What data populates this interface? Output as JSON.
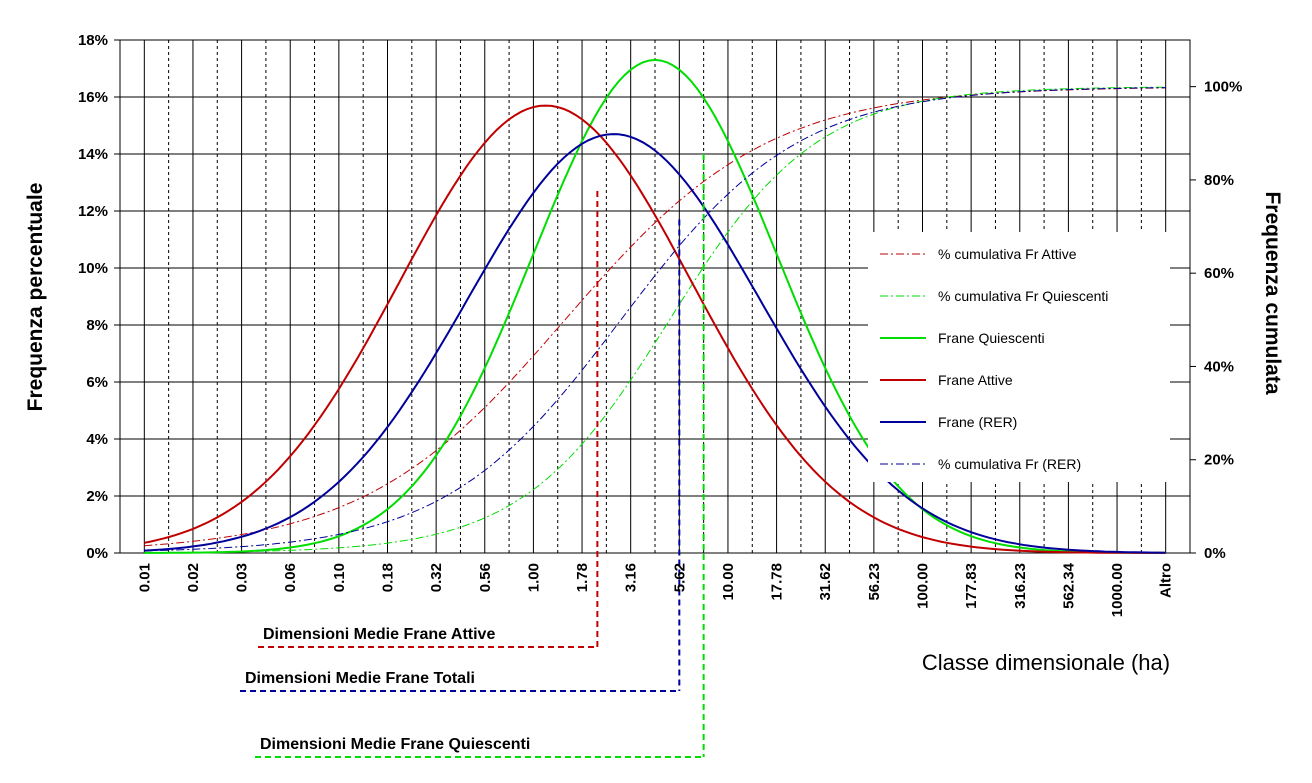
{
  "chart_data": {
    "type": "line",
    "xlabel": "Classe dimensionale (ha)",
    "ylabel": "Frequenza percentuale",
    "y2label": "Frequenza cumulata",
    "categories": [
      "0.01",
      "",
      "0.02",
      "",
      "0.03",
      "",
      "0.06",
      "",
      "0.10",
      "",
      "0.18",
      "",
      "0.32",
      "",
      "0.56",
      "",
      "1.00",
      "",
      "1.78",
      "",
      "3.16",
      "",
      "5.62",
      "",
      "10.00",
      "",
      "17.78",
      "",
      "31.62",
      "",
      "56.23",
      "",
      "100.00",
      "",
      "177.83",
      "",
      "316.23",
      "",
      "562.34",
      "",
      "1000.00",
      "",
      "Altro"
    ],
    "yticks": [
      "0%",
      "2%",
      "4%",
      "6%",
      "8%",
      "10%",
      "12%",
      "14%",
      "16%",
      "18%"
    ],
    "ylim": [
      0,
      18
    ],
    "y2ticks": [
      "0%",
      "20%",
      "40%",
      "60%",
      "80%",
      "100%"
    ],
    "y2lim": [
      0,
      110
    ],
    "grid": "on",
    "legend_position": "right",
    "series": [
      {
        "name": "% cumulativa Fr Attive",
        "axis": "right",
        "style": "dash-dot",
        "color": "#c00000",
        "mu": 17.3,
        "sigma": 7.1,
        "scale": 100
      },
      {
        "name": "% cumulativa Fr Quiescenti",
        "axis": "right",
        "style": "dash-dot",
        "color": "#00dd00",
        "mu": 21.6,
        "sigma": 5.15,
        "scale": 100
      },
      {
        "name": "Frane Quiescenti",
        "axis": "left",
        "style": "solid",
        "color": "#00dd00",
        "mu": 21.0,
        "sigma": 5.0,
        "peak": 17.3
      },
      {
        "name": "Frane Attive",
        "axis": "left",
        "style": "solid",
        "color": "#c00000",
        "mu": 16.5,
        "sigma": 6.0,
        "peak": 15.7
      },
      {
        "name": "Frane (RER)",
        "axis": "left",
        "style": "solid",
        "color": "#00009a",
        "mu": 19.3,
        "sigma": 6.0,
        "peak": 14.7
      },
      {
        "name": "% cumulativa Fr (RER)",
        "axis": "right",
        "style": "dash-dot",
        "color": "#00009a",
        "mu": 19.6,
        "sigma": 6.2,
        "scale": 100
      }
    ],
    "annotations": [
      {
        "label": "Dimensioni Medie Frane Attive",
        "color": "#c00000",
        "x_index": 19,
        "y_value": 12.7
      },
      {
        "label": "Dimensioni Medie Frane Totali",
        "color": "#00009a",
        "x_index": 22,
        "y_value": 11.7
      },
      {
        "label": "Dimensioni Medie Frane Quiescenti",
        "color": "#00dd00",
        "x_index": 23,
        "y_value": 14.0
      }
    ]
  }
}
